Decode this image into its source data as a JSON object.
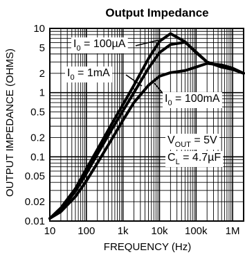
{
  "chart_data": {
    "type": "line",
    "title": "Output Impedance",
    "xlabel": "FREQUENCY (Hz)",
    "ylabel": "OUTPUT IMPEDANCE (OHMS)",
    "xscale": "log",
    "yscale": "log",
    "xlim": [
      10,
      2000000
    ],
    "ylim": [
      0.01,
      10
    ],
    "grid": true,
    "x_ticks": [
      {
        "value": 10,
        "label": "10"
      },
      {
        "value": 100,
        "label": "100"
      },
      {
        "value": 1000,
        "label": "1k"
      },
      {
        "value": 10000,
        "label": "10k"
      },
      {
        "value": 100000,
        "label": "100k"
      },
      {
        "value": 1000000,
        "label": "1M"
      }
    ],
    "y_ticks": [
      {
        "value": 0.01,
        "label": "0.01"
      },
      {
        "value": 0.02,
        "label": "0.02"
      },
      {
        "value": 0.05,
        "label": "0.05"
      },
      {
        "value": 0.1,
        "label": "0.1"
      },
      {
        "value": 0.2,
        "label": "0.2"
      },
      {
        "value": 0.5,
        "label": "0.5"
      },
      {
        "value": 1,
        "label": "1"
      },
      {
        "value": 2,
        "label": "2"
      },
      {
        "value": 5,
        "label": "5"
      },
      {
        "value": 10,
        "label": "10"
      }
    ],
    "series": [
      {
        "name": "I0 = 100µA",
        "points": [
          [
            10,
            0.011
          ],
          [
            20,
            0.016
          ],
          [
            50,
            0.032
          ],
          [
            100,
            0.065
          ],
          [
            200,
            0.13
          ],
          [
            500,
            0.33
          ],
          [
            1000,
            0.65
          ],
          [
            2000,
            1.3
          ],
          [
            5000,
            3.4
          ],
          [
            10000,
            6.3
          ],
          [
            20000,
            8.3
          ],
          [
            50000,
            6.2
          ],
          [
            100000,
            4.2
          ],
          [
            200000,
            3.0
          ],
          [
            500000,
            2.5
          ],
          [
            1000000,
            2.3
          ],
          [
            2000000,
            2.0
          ]
        ]
      },
      {
        "name": "I0 = 1mA",
        "points": [
          [
            10,
            0.011
          ],
          [
            20,
            0.015
          ],
          [
            50,
            0.029
          ],
          [
            100,
            0.055
          ],
          [
            200,
            0.11
          ],
          [
            500,
            0.27
          ],
          [
            1000,
            0.52
          ],
          [
            2000,
            1.0
          ],
          [
            5000,
            2.4
          ],
          [
            10000,
            4.2
          ],
          [
            20000,
            5.6
          ],
          [
            50000,
            6.1
          ],
          [
            100000,
            4.3
          ],
          [
            200000,
            3.0
          ],
          [
            500000,
            2.5
          ],
          [
            1000000,
            2.3
          ],
          [
            2000000,
            2.0
          ]
        ]
      },
      {
        "name": "I0 = 100mA",
        "points": [
          [
            10,
            0.011
          ],
          [
            20,
            0.014
          ],
          [
            50,
            0.024
          ],
          [
            100,
            0.042
          ],
          [
            200,
            0.08
          ],
          [
            500,
            0.19
          ],
          [
            1000,
            0.37
          ],
          [
            2000,
            0.7
          ],
          [
            5000,
            1.3
          ],
          [
            10000,
            1.8
          ],
          [
            20000,
            2.05
          ],
          [
            50000,
            2.2
          ],
          [
            100000,
            2.5
          ],
          [
            200000,
            2.85
          ],
          [
            500000,
            2.7
          ],
          [
            1000000,
            2.4
          ],
          [
            2000000,
            2.0
          ]
        ]
      }
    ],
    "annotations": [
      {
        "id": "i100ua",
        "text": "I0 = 100µA",
        "base": "I",
        "sub": "0",
        "rest": " = 100µA"
      },
      {
        "id": "i1ma",
        "text": "I0 = 1mA",
        "base": "I",
        "sub": "0",
        "rest": " = 1mA"
      },
      {
        "id": "i100ma",
        "text": "I0 = 100mA",
        "base": "I",
        "sub": "0",
        "rest": " = 100mA"
      },
      {
        "id": "vout",
        "text": "VOUT = 5V",
        "base": "V",
        "sub": "OUT",
        "rest": " = 5V"
      },
      {
        "id": "cl",
        "text": "CL = 4.7µF",
        "base": "C",
        "sub": "L",
        "rest": " = 4.7µF"
      }
    ]
  }
}
